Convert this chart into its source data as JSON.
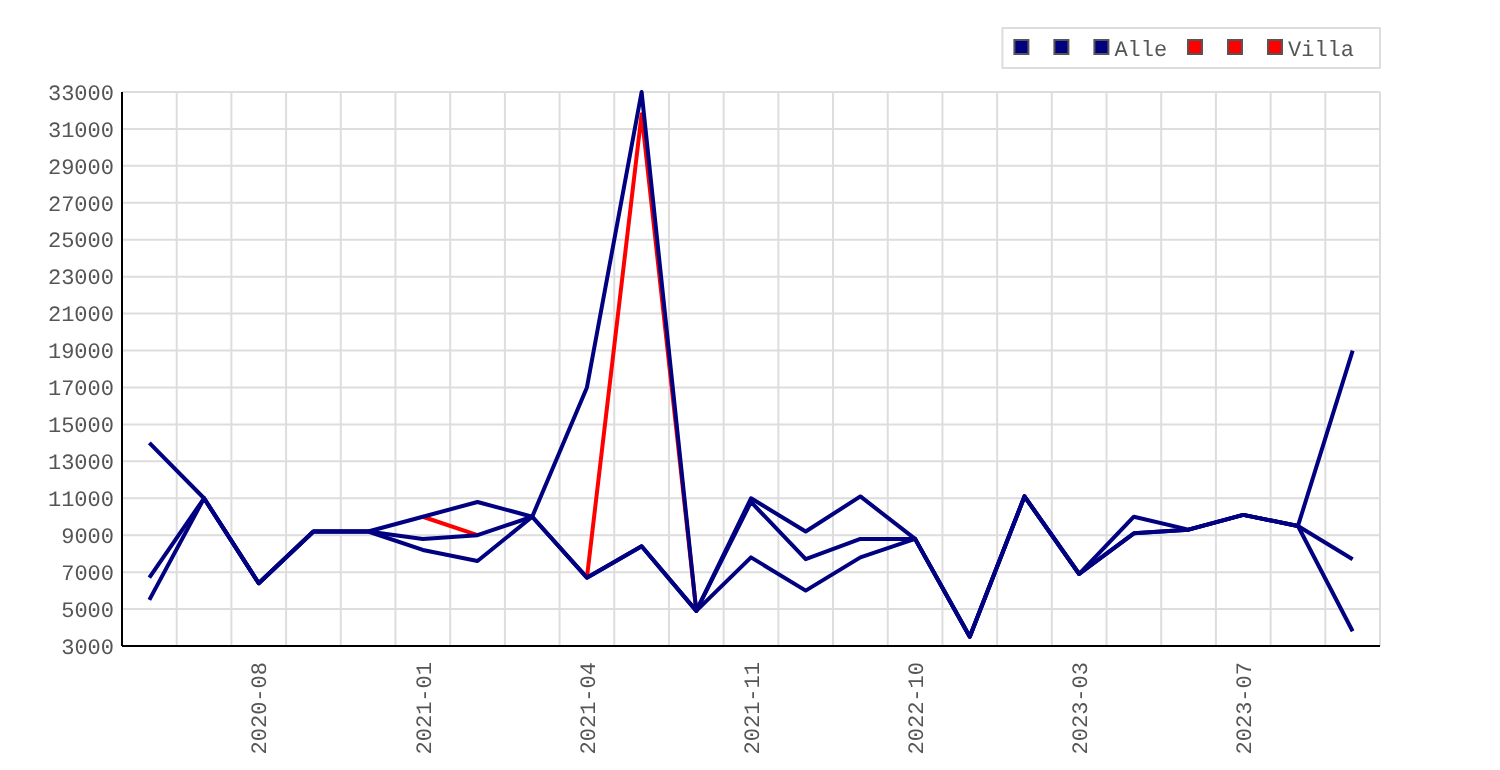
{
  "chart_data": {
    "type": "line",
    "categories": [
      null,
      null,
      "2020-08",
      null,
      null,
      "2021-01",
      null,
      null,
      "2021-04",
      null,
      null,
      "2021-11",
      null,
      null,
      "2022-10",
      null,
      null,
      "2023-03",
      null,
      null,
      "2023-07",
      null,
      null
    ],
    "ylim": [
      3000,
      33000
    ],
    "yticks": [
      3000,
      5000,
      7000,
      9000,
      11000,
      13000,
      15000,
      17000,
      19000,
      21000,
      23000,
      25000,
      27000,
      29000,
      31000,
      33000
    ],
    "grid": true,
    "legend": "top right",
    "line_style": "solid",
    "marker": "none",
    "series": [
      {
        "color": "#000080",
        "values": [
          14000,
          11000,
          6400,
          9200,
          9200,
          10000,
          10800,
          10000,
          17000,
          33000,
          4900,
          11000,
          9200,
          11100,
          8800,
          3500,
          11100,
          6900,
          10000,
          9300,
          10100,
          9500,
          19000
        ]
      },
      {
        "color": "#000080",
        "values": [
          6700,
          11000,
          6400,
          9200,
          9200,
          8800,
          9000,
          10000,
          6700,
          8400,
          4900,
          10800,
          7700,
          8800,
          8800,
          3500,
          11100,
          6900,
          9100,
          9300,
          10100,
          9500,
          7700
        ]
      },
      {
        "name": "Alle",
        "color": "#000080",
        "values": [
          5500,
          11000,
          6400,
          9200,
          9200,
          8200,
          7600,
          10000,
          6700,
          8400,
          4900,
          7800,
          6000,
          7800,
          8800,
          3500,
          11100,
          6900,
          9100,
          9300,
          10100,
          9500,
          3800
        ]
      },
      {
        "color": "#ff0000",
        "values": [
          null,
          null,
          null,
          null,
          null,
          null,
          null,
          null,
          null,
          null,
          null,
          null,
          null,
          null,
          null,
          null,
          null,
          null,
          null,
          null,
          null,
          null,
          null
        ]
      },
      {
        "color": "#ff0000",
        "values": [
          null,
          null,
          null,
          null,
          null,
          null,
          null,
          null,
          null,
          null,
          null,
          null,
          null,
          null,
          null,
          null,
          null,
          null,
          null,
          null,
          null,
          null,
          null
        ]
      },
      {
        "name": "Villa",
        "color": "#ff0000",
        "values": [
          null,
          null,
          null,
          null,
          null,
          10000,
          9000,
          null,
          6700,
          31800,
          4900,
          null,
          null,
          null,
          null,
          null,
          null,
          null,
          null,
          null,
          null,
          null,
          null
        ]
      }
    ]
  }
}
